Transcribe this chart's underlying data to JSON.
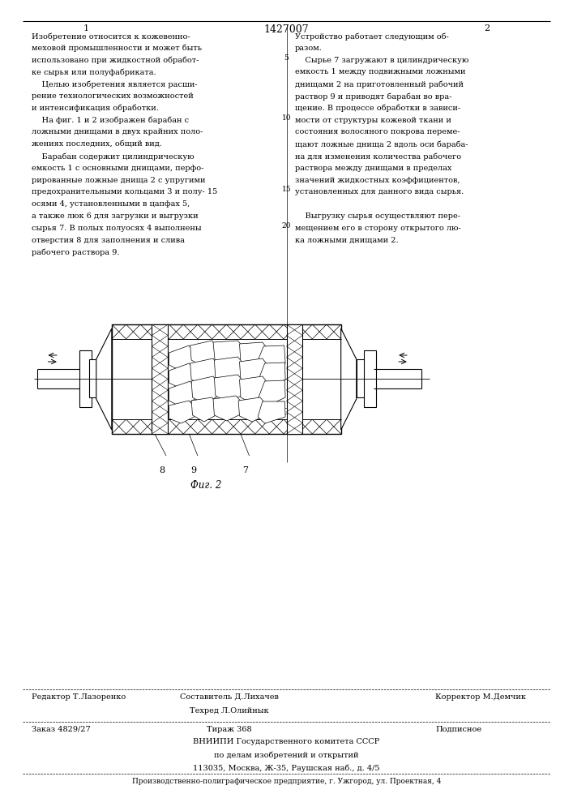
{
  "page_width": 7.07,
  "page_height": 10.0,
  "bg_color": "#ffffff",
  "patent_number": "1427007",
  "col1_num": "1",
  "col2_num": "2",
  "text_col1": [
    "Изобретение относится к кожевенно-",
    "меховой промышленности и может быть",
    "использовано при жидкостной обработ-",
    "ке сырья или полуфабриката.",
    "    Целью изобретения является расши-",
    "рение технологических возможностей",
    "и интенсификация обработки.",
    "    На фиг. 1 и 2 изображен барабан с",
    "ложными днищами в двух крайних поло-",
    "жениях последних, общий вид.",
    "    Барабан содержит цилиндрическую",
    "емкость 1 с основными днищами, перфо-",
    "рированные ложные днища 2 с упругими",
    "предохранительными кольцами 3 и полу- 15",
    "осями 4, установленными в цапфах 5,",
    "а также люк 6 для загрузки и выгрузки",
    "сырья 7. В полых полуосях 4 выполнены",
    "отверстия 8 для заполнения и слива",
    "рабочего раствора 9."
  ],
  "text_col2": [
    "Устройство работает следующим об-",
    "разом.",
    "    Сырье 7 загружают в цилиндрическую",
    "емкость 1 между подвижными ложными",
    "днищами 2 на приготовленный рабочий",
    "раствор 9 и приводят барабан во вра-",
    "щение. В процессе обработки в зависи-",
    "мости от структуры кожевой ткани и",
    "состояния волосяного покрова переме-",
    "щают ложные днища 2 вдоль оси бараба-",
    "на для изменения количества рабочего",
    "раствора между днищами в пределах",
    "значений жидкостных коэффициентов,",
    "установленных для данного вида сырья.",
    "",
    "    Выгрузку сырья осуществляют пере-",
    "мещением его в сторону открытого лю-",
    "ка ложными днищами 2."
  ],
  "fig_caption": "Фиг. 2",
  "footer_editor": "Редактор Т.Лазоренко",
  "footer_compiler": "Составитель Д.Лихачев",
  "footer_techred": "Техред Л.Олийнык",
  "footer_corrector": "Корректор М.Демчик",
  "footer_order": "Заказ 4829/27",
  "footer_tirazh": "Тираж 368",
  "footer_podpisnoe": "Подписное",
  "footer_vniipи": "ВНИИПИ Государственного комитета СССР",
  "footer_line2": "по делам изобретений и открытий",
  "footer_line3": "113035, Москва, Ж-35, Раушская наб., д. 4/5",
  "footer_bottom": "Производственно-полиграфическое предприятие, г. Ужгород, ул. Проектная, 4"
}
